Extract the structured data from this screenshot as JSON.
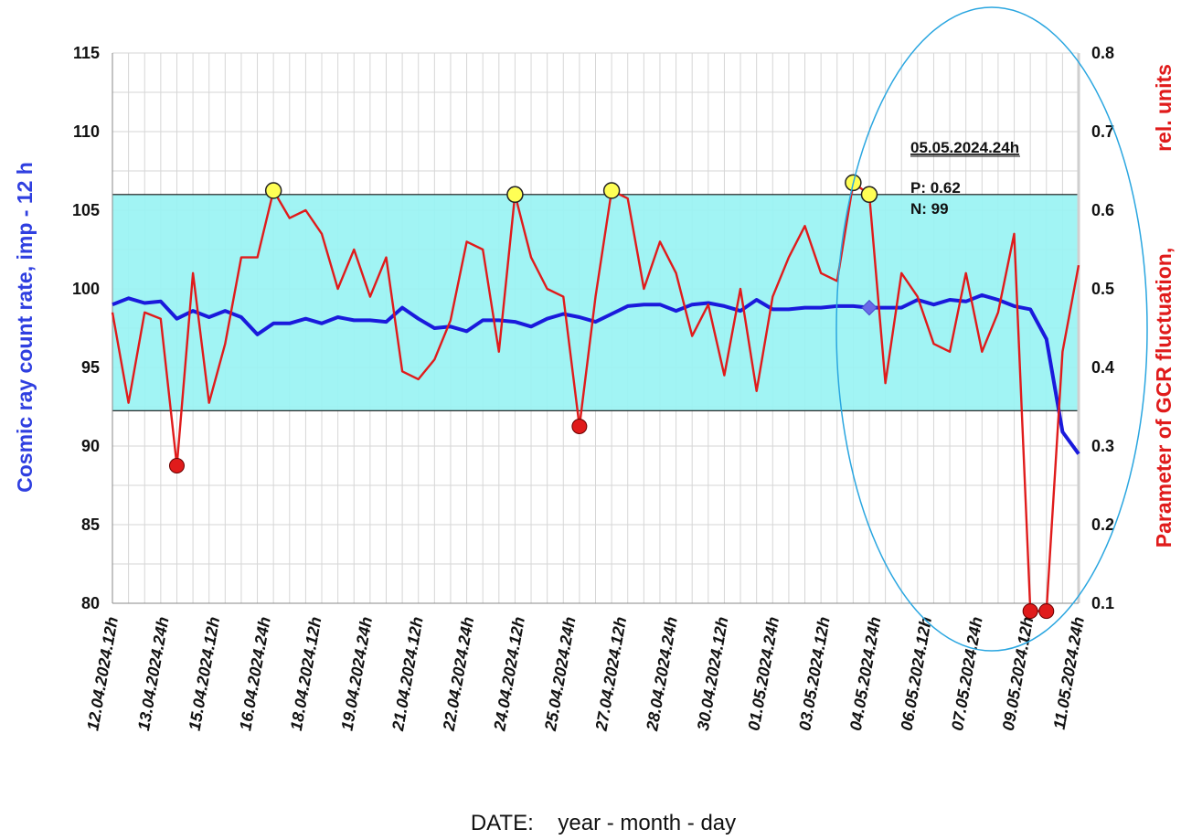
{
  "chart_data": {
    "type": "line",
    "xlabel": "DATE:    year - month - day",
    "ylabel_left": "Cosmic ray count rate,   imp - 12 h",
    "ylabel_right_part1": "Parameter of GCR fluctuation,",
    "ylabel_right_part2": "rel. units",
    "left_axis": {
      "ylim": [
        80,
        115
      ],
      "ticks": [
        "80",
        "85",
        "90",
        "95",
        "100",
        "105",
        "110",
        "115"
      ]
    },
    "right_axis": {
      "ylim": [
        0.1,
        0.8
      ],
      "ticks": [
        "0.1",
        "0.2",
        "0.3",
        "0.4",
        "0.5",
        "0.6",
        "0.7",
        "0.8"
      ]
    },
    "x_tick_labels": [
      "12.04.2024.12h",
      "13.04.2024.24h",
      "15.04.2024.12h",
      "16.04.2024.24h",
      "18.04.2024.12h",
      "19.04.2024.24h",
      "21.04.2024.12h",
      "22.04.2024.24h",
      "24.04.2024.12h",
      "25.04.2024.24h",
      "27.04.2024.12h",
      "28.04.2024.24h",
      "30.04.2024.12h",
      "01.05.2024.24h",
      "03.05.2024.12h",
      "04.05.2024.24h",
      "06.05.2024.12h",
      "07.05.2024.24h",
      "09.05.2024.12h",
      "11.05.2024.24h"
    ],
    "band": {
      "lower": 0.345,
      "upper": 0.62,
      "color": "#99f3f3"
    },
    "series": [
      {
        "name": "Cosmic ray count rate (imp - 12 h)",
        "axis": "left",
        "color": "#1a1adc",
        "values": [
          99.0,
          99.4,
          99.1,
          99.2,
          98.1,
          98.6,
          98.2,
          98.6,
          98.2,
          97.1,
          97.8,
          97.8,
          98.1,
          97.8,
          98.2,
          98.0,
          98.0,
          97.9,
          98.8,
          98.1,
          97.5,
          97.6,
          97.3,
          98.0,
          98.0,
          97.9,
          97.6,
          98.1,
          98.4,
          98.2,
          97.9,
          98.4,
          98.9,
          99.0,
          99.0,
          98.6,
          99.0,
          99.1,
          98.9,
          98.6,
          99.3,
          98.7,
          98.7,
          98.8,
          98.8,
          98.9,
          98.9,
          98.8,
          98.8,
          98.8,
          99.3,
          99.0,
          99.3,
          99.2,
          99.6,
          99.3,
          98.9,
          98.7,
          96.8,
          90.9,
          89.5
        ]
      },
      {
        "name": "Parameter of GCR fluctuation (rel. units)",
        "axis": "right",
        "color": "#e01b1b",
        "values": [
          0.47,
          0.355,
          0.47,
          0.462,
          0.275,
          0.52,
          0.355,
          0.43,
          0.54,
          0.54,
          0.625,
          0.59,
          0.6,
          0.57,
          0.5,
          0.55,
          0.49,
          0.54,
          0.395,
          0.385,
          0.41,
          0.46,
          0.56,
          0.55,
          0.42,
          0.62,
          0.54,
          0.5,
          0.49,
          0.325,
          0.49,
          0.625,
          0.615,
          0.5,
          0.56,
          0.52,
          0.44,
          0.48,
          0.39,
          0.5,
          0.37,
          0.49,
          0.54,
          0.58,
          0.52,
          0.51,
          0.635,
          0.62,
          0.38,
          0.52,
          0.49,
          0.43,
          0.42,
          0.52,
          0.42,
          0.47,
          0.57,
          0.09,
          0.09,
          0.42,
          0.53
        ]
      }
    ],
    "markers": {
      "yellow_indices": [
        10,
        25,
        31,
        46,
        47
      ],
      "red_indices": [
        4,
        29,
        57,
        58
      ],
      "diamond_index": 47
    },
    "annotation": {
      "date": "05.05.2024.24h",
      "p": "P: 0.62",
      "n": "N: 99"
    },
    "legend": "none",
    "grid": true
  }
}
